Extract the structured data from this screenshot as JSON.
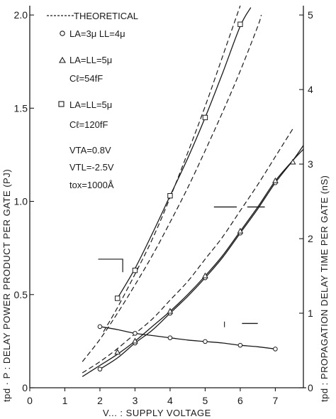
{
  "chart_data": {
    "type": "line",
    "title": "",
    "x_axis": {
      "label": "V... : SUPPLY VOLTAGE",
      "range": [
        0,
        7.8
      ],
      "ticks": [
        0,
        1,
        2,
        3,
        4,
        5,
        6,
        7
      ],
      "tick_labels": [
        "0",
        "1",
        "2",
        "3",
        "4",
        "5",
        "6",
        "7"
      ]
    },
    "y_left": {
      "label": "tpd · P : DELAY POWER PRODUCT PER GATE (PJ)",
      "range": [
        0,
        2.05
      ],
      "ticks": [
        0,
        0.5,
        1.0,
        1.5,
        2.0
      ],
      "tick_labels": [
        "0",
        "0.5",
        "1.0",
        "1.5",
        "2.0"
      ]
    },
    "y_right": {
      "label": "tpd : PROPAGATION DELAY TIME PER GATE (nS)",
      "range": [
        0,
        5.125
      ],
      "ticks": [
        0,
        1,
        2,
        3,
        4,
        5
      ],
      "tick_labels": [
        "0",
        "1",
        "2",
        "3",
        "4",
        "5"
      ]
    },
    "legend": [
      {
        "marker": "none",
        "label": "THEORETICAL"
      },
      {
        "marker": "circle",
        "label": "LA=3μ  LL=4μ"
      },
      {
        "marker": "triangle",
        "label": "LA=LL=5μ",
        "sub": "Cℓ=54fF"
      },
      {
        "marker": "square",
        "label": "LA=LL=5μ",
        "sub": "Cℓ=120fF"
      }
    ],
    "parameters": [
      "VTA=0.8V",
      "VTL=-2.5V",
      "tox=1000Å"
    ],
    "series": [
      {
        "name": "square-measured",
        "axis": "left",
        "style": "solid",
        "marker": "square",
        "points": [
          [
            2.5,
            0.48
          ],
          [
            3,
            0.63
          ],
          [
            4,
            1.03
          ],
          [
            5,
            1.45
          ],
          [
            6,
            1.95
          ]
        ],
        "curve": [
          [
            2.5,
            0.48
          ],
          [
            3,
            0.64
          ],
          [
            3.5,
            0.83
          ],
          [
            4,
            1.03
          ],
          [
            4.5,
            1.23
          ],
          [
            5,
            1.45
          ],
          [
            5.5,
            1.69
          ],
          [
            6,
            1.94
          ],
          [
            6.3,
            2.04
          ]
        ]
      },
      {
        "name": "square-theoretical",
        "axis": "left",
        "style": "dashed",
        "marker": "none",
        "curve": [
          [
            2.1,
            0.3
          ],
          [
            2.5,
            0.43
          ],
          [
            3,
            0.61
          ],
          [
            3.5,
            0.8
          ],
          [
            4,
            1.02
          ],
          [
            4.5,
            1.26
          ],
          [
            5,
            1.51
          ],
          [
            5.5,
            1.78
          ],
          [
            6,
            2.05
          ]
        ]
      },
      {
        "name": "delay-circle",
        "axis": "right",
        "style": "solid",
        "marker": "circle",
        "points": [
          [
            2,
            0.82
          ],
          [
            3,
            0.73
          ],
          [
            4,
            0.67
          ],
          [
            5,
            0.62
          ],
          [
            6,
            0.57
          ],
          [
            7,
            0.52
          ]
        ],
        "curve": [
          [
            2,
            0.82
          ],
          [
            2.5,
            0.78
          ],
          [
            3,
            0.73
          ],
          [
            3.5,
            0.7
          ],
          [
            4,
            0.67
          ],
          [
            4.5,
            0.64
          ],
          [
            5,
            0.62
          ],
          [
            5.5,
            0.6
          ],
          [
            6,
            0.57
          ],
          [
            6.5,
            0.55
          ],
          [
            7,
            0.52
          ]
        ]
      },
      {
        "name": "product-circle",
        "axis": "left",
        "style": "solid",
        "marker": "circle",
        "points": [
          [
            2,
            0.1
          ],
          [
            3,
            0.24
          ],
          [
            4,
            0.4
          ],
          [
            5,
            0.59
          ],
          [
            6,
            0.83
          ],
          [
            7,
            1.1
          ]
        ],
        "curve": [
          [
            2,
            0.1
          ],
          [
            2.5,
            0.16
          ],
          [
            3,
            0.24
          ],
          [
            3.5,
            0.31
          ],
          [
            4,
            0.4
          ],
          [
            4.5,
            0.49
          ],
          [
            5,
            0.59
          ],
          [
            5.5,
            0.7
          ],
          [
            6,
            0.83
          ],
          [
            6.5,
            0.96
          ],
          [
            7,
            1.1
          ],
          [
            7.5,
            1.22
          ],
          [
            7.8,
            1.3
          ]
        ]
      },
      {
        "name": "product-triangle",
        "axis": "left",
        "style": "solid",
        "marker": "triangle",
        "points": [
          [
            2.5,
            0.19
          ],
          [
            3,
            0.25
          ],
          [
            4,
            0.41
          ],
          [
            5,
            0.6
          ],
          [
            6,
            0.84
          ],
          [
            7,
            1.11
          ],
          [
            7.5,
            1.21
          ]
        ],
        "curve": [
          [
            1.5,
            0.06
          ],
          [
            2,
            0.12
          ],
          [
            2.5,
            0.18
          ],
          [
            3,
            0.25
          ],
          [
            3.5,
            0.33
          ],
          [
            4,
            0.41
          ],
          [
            4.5,
            0.5
          ],
          [
            5,
            0.6
          ],
          [
            5.5,
            0.71
          ],
          [
            6,
            0.84
          ],
          [
            6.5,
            0.97
          ],
          [
            7,
            1.11
          ],
          [
            7.5,
            1.22
          ],
          [
            7.8,
            1.28
          ]
        ]
      },
      {
        "name": "product-theoretical",
        "axis": "left",
        "style": "dashed",
        "marker": "none",
        "curve": [
          [
            1.5,
            0.08
          ],
          [
            2,
            0.14
          ],
          [
            2.5,
            0.21
          ],
          [
            3,
            0.29
          ],
          [
            3.5,
            0.37
          ],
          [
            4,
            0.47
          ],
          [
            4.5,
            0.57
          ],
          [
            5,
            0.69
          ],
          [
            5.5,
            0.81
          ],
          [
            6,
            0.95
          ],
          [
            6.5,
            1.09
          ],
          [
            7,
            1.24
          ],
          [
            7.5,
            1.39
          ]
        ]
      },
      {
        "name": "delay-theoretical",
        "axis": "right",
        "style": "dashed",
        "marker": "none",
        "curve": [
          [
            1.5,
            0.35
          ],
          [
            2,
            0.65
          ],
          [
            2.5,
            1.0
          ],
          [
            3,
            1.38
          ],
          [
            3.5,
            1.78
          ],
          [
            4,
            2.22
          ],
          [
            4.5,
            2.68
          ],
          [
            5,
            3.18
          ],
          [
            5.5,
            3.7
          ],
          [
            6,
            4.25
          ],
          [
            6.5,
            4.85
          ],
          [
            6.6,
            5.0
          ]
        ]
      }
    ]
  }
}
